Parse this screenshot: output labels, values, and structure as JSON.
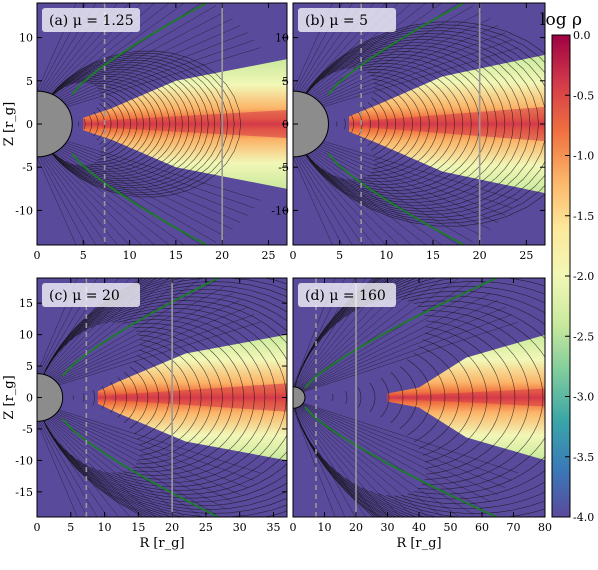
{
  "chart_data": [
    {
      "type": "heatmap",
      "panel": "a",
      "title": "(a) μ = 1.25",
      "xlabel": "",
      "ylabel": "Z [r_g]",
      "xlim": [
        0,
        27
      ],
      "ylim": [
        -14,
        14
      ],
      "xticks": [
        0,
        5,
        10,
        15,
        20,
        25
      ],
      "yticks": [
        -10,
        -5,
        0,
        5,
        10
      ],
      "star_radius": 3.8,
      "dashed_line_x": 7.3,
      "solid_line_x": 20,
      "disk": {
        "inner": 5.0,
        "r1": 8.0,
        "r2": 15.0,
        "outer": 27,
        "h1": 1.8,
        "h2": 5.0,
        "h3": 7.5
      },
      "field_lines": 26,
      "field_spread": 2.8
    },
    {
      "type": "heatmap",
      "panel": "b",
      "title": "(b) μ = 5",
      "xlabel": "",
      "ylabel": "",
      "xlim": [
        0,
        27
      ],
      "ylim": [
        -14,
        14
      ],
      "xticks": [
        0,
        5,
        10,
        15,
        20,
        25
      ],
      "yticks": [
        -10,
        -5,
        0,
        5,
        10
      ],
      "star_radius": 3.8,
      "dashed_line_x": 7.3,
      "solid_line_x": 20,
      "disk": {
        "inner": 6.0,
        "r1": 9.0,
        "r2": 16.0,
        "outer": 27,
        "h1": 2.2,
        "h2": 5.5,
        "h3": 8.0
      },
      "field_lines": 30,
      "field_spread": 3.6
    },
    {
      "type": "heatmap",
      "panel": "c",
      "title": "(c) μ = 20",
      "xlabel": "R [r_g]",
      "ylabel": "Z [r_g]",
      "xlim": [
        0,
        37
      ],
      "ylim": [
        -19,
        19
      ],
      "xticks": [
        0,
        5,
        10,
        15,
        20,
        25,
        30,
        35
      ],
      "yticks": [
        -15,
        -10,
        -5,
        0,
        5,
        10,
        15
      ],
      "star_radius": 3.8,
      "dashed_line_x": 7.3,
      "solid_line_x": 20,
      "disk": {
        "inner": 9.0,
        "r1": 12.0,
        "r2": 22.0,
        "outer": 37,
        "h1": 2.5,
        "h2": 7.0,
        "h3": 10.0
      },
      "field_lines": 36,
      "field_spread": 4.6
    },
    {
      "type": "heatmap",
      "panel": "d",
      "title": "(d) μ = 160",
      "xlabel": "R [r_g]",
      "ylabel": "",
      "xlim": [
        0,
        80
      ],
      "ylim": [
        -42,
        42
      ],
      "xticks": [
        0,
        10,
        20,
        30,
        40,
        50,
        60,
        70,
        80
      ],
      "yticks": [],
      "star_radius": 3.8,
      "dashed_line_x": 7.3,
      "solid_line_x": 20,
      "disk": {
        "inner": 30.0,
        "r1": 40.0,
        "r2": 55.0,
        "outer": 80,
        "h1": 3.5,
        "h2": 14.0,
        "h3": 22.0
      },
      "field_lines": 40,
      "field_spread": 6.0
    }
  ],
  "colorbar": {
    "label": "log ρ",
    "ticks": [
      "0.0",
      "-0.5",
      "-1.0",
      "-1.5",
      "-2.0",
      "-2.5",
      "-3.0",
      "-3.5",
      "-4.0"
    ],
    "range": [
      -4.0,
      0.0
    ],
    "colors": [
      "#5a4a9c",
      "#3a7ab8",
      "#3aa6a8",
      "#7ecb9c",
      "#c9e99d",
      "#f2f7b6",
      "#fde89a",
      "#fbb468",
      "#f0703f",
      "#d33a4a",
      "#9e0142"
    ]
  },
  "colors": {
    "background_low_density": "#5a4a9c",
    "star": "#8c8c8c",
    "contour": "#111111",
    "separatrix": "#1f7a2e",
    "guide_line": "#999999"
  }
}
